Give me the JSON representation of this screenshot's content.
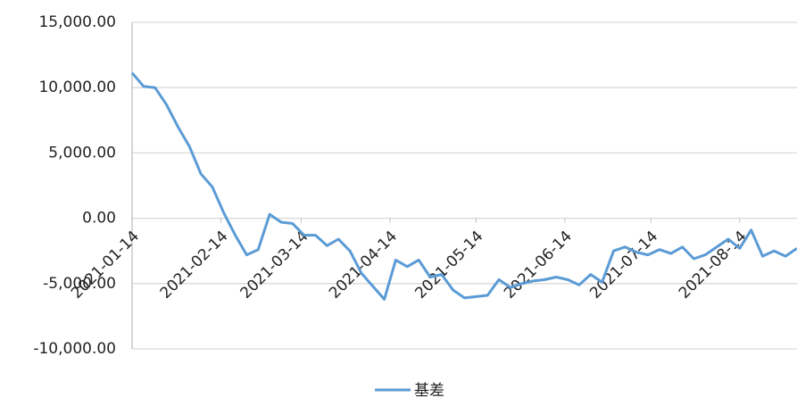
{
  "chart_data": {
    "type": "line",
    "x": [
      "2021-01-14",
      "2021-01-18",
      "2021-01-22",
      "2021-01-26",
      "2021-01-30",
      "2021-02-03",
      "2021-02-07",
      "2021-02-11",
      "2021-02-15",
      "2021-02-19",
      "2021-02-23",
      "2021-02-27",
      "2021-03-03",
      "2021-03-07",
      "2021-03-11",
      "2021-03-15",
      "2021-03-19",
      "2021-03-23",
      "2021-03-27",
      "2021-03-31",
      "2021-04-04",
      "2021-04-08",
      "2021-04-12",
      "2021-04-16",
      "2021-04-20",
      "2021-04-24",
      "2021-04-28",
      "2021-05-02",
      "2021-05-06",
      "2021-05-10",
      "2021-05-14",
      "2021-05-18",
      "2021-05-22",
      "2021-05-26",
      "2021-05-30",
      "2021-06-03",
      "2021-06-07",
      "2021-06-11",
      "2021-06-15",
      "2021-06-19",
      "2021-06-23",
      "2021-06-27",
      "2021-07-01",
      "2021-07-05",
      "2021-07-09",
      "2021-07-13",
      "2021-07-17",
      "2021-07-21",
      "2021-07-25",
      "2021-07-29",
      "2021-08-02",
      "2021-08-06",
      "2021-08-10",
      "2021-08-14",
      "2021-08-18",
      "2021-08-22",
      "2021-08-26",
      "2021-08-30",
      "2021-09-03"
    ],
    "series": [
      {
        "name": "基差",
        "color": "#5b9bd5",
        "values": [
          11130,
          10100,
          10000,
          8700,
          7000,
          5500,
          3400,
          2400,
          400,
          -1300,
          -2800,
          -2400,
          300,
          -300,
          -400,
          -1300,
          -1300,
          -2100,
          -1600,
          -2500,
          -4200,
          -5200,
          -6200,
          -3200,
          -3700,
          -3200,
          -4500,
          -4300,
          -5500,
          -6100,
          -6000,
          -5900,
          -4700,
          -5300,
          -5000,
          -4800,
          -4700,
          -4500,
          -4700,
          -5100,
          -4300,
          -4900,
          -2500,
          -2200,
          -2600,
          -2800,
          -2400,
          -2700,
          -2200,
          -3100,
          -2800,
          -2200,
          -1600,
          -2300,
          -900,
          -2900,
          -2500,
          -2900,
          -2300
        ]
      }
    ],
    "xlim": [
      "2021-01-14",
      "2021-09-03"
    ],
    "xticks": [
      "2021-01-14",
      "2021-02-14",
      "2021-03-14",
      "2021-04-14",
      "2021-05-14",
      "2021-06-14",
      "2021-07-14",
      "2021-08-14"
    ],
    "ylim": [
      -10000,
      15000
    ],
    "yticks": [
      {
        "value": -10000,
        "label": "-10,000.00"
      },
      {
        "value": -5000,
        "label": "-5,000.00"
      },
      {
        "value": 0,
        "label": "0.00"
      },
      {
        "value": 5000,
        "label": "5,000.00"
      },
      {
        "value": 10000,
        "label": "10,000.00"
      },
      {
        "value": 15000,
        "label": "15,000.00"
      }
    ],
    "grid": true,
    "legend": "bottom"
  }
}
